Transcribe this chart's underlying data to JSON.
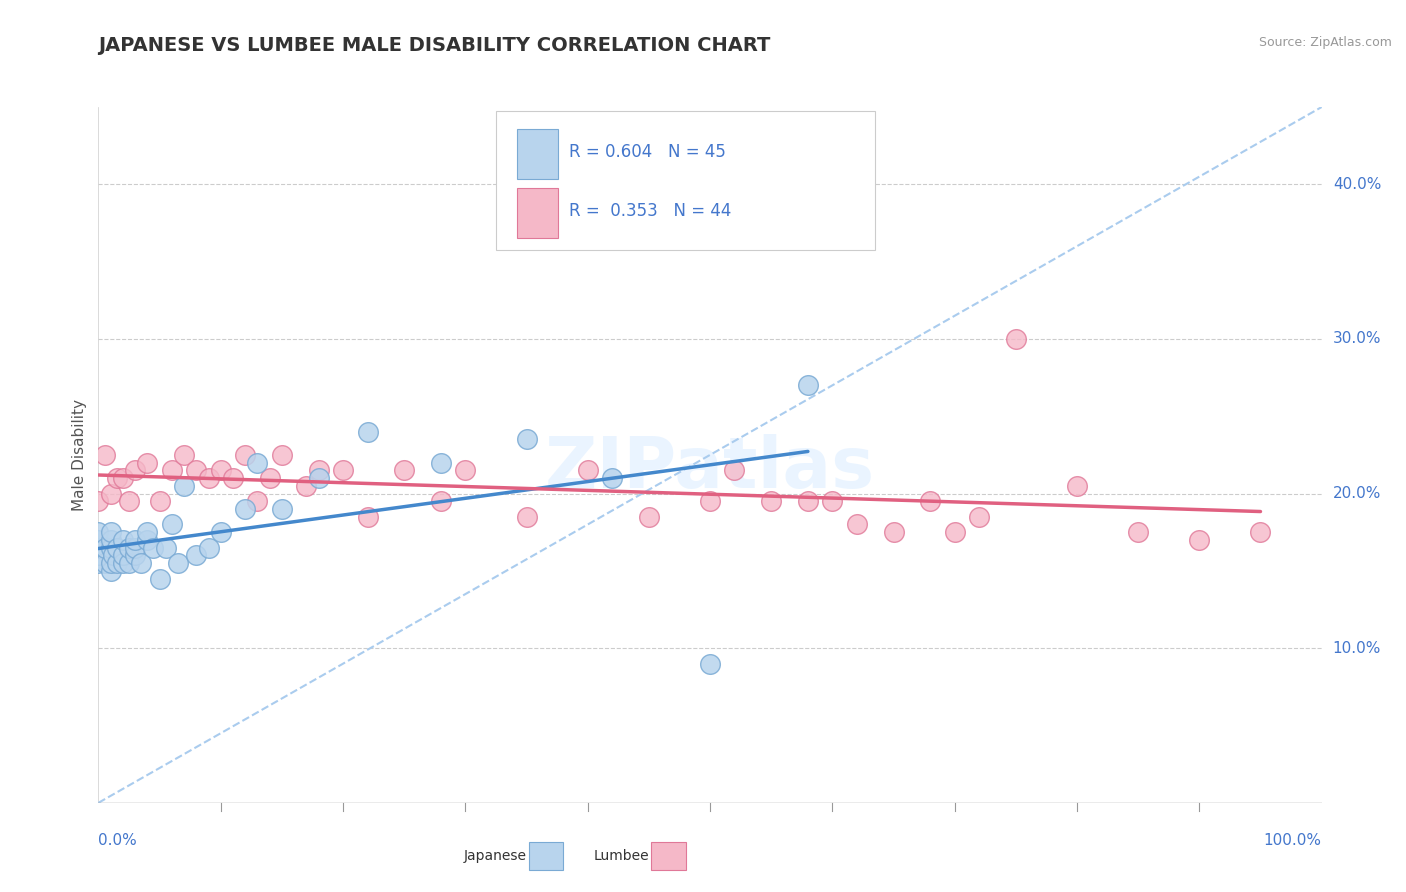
{
  "title": "JAPANESE VS LUMBEE MALE DISABILITY CORRELATION CHART",
  "source": "Source: ZipAtlas.com",
  "ylabel": "Male Disability",
  "ytick_vals": [
    0.1,
    0.2,
    0.3,
    0.4
  ],
  "ytick_labels": [
    "10.0%",
    "20.0%",
    "30.0%",
    "40.0%"
  ],
  "xlim": [
    0.0,
    1.0
  ],
  "ylim": [
    0.0,
    0.45
  ],
  "legend_R_japanese": "0.604",
  "legend_N_japanese": "45",
  "legend_R_lumbee": "0.353",
  "legend_N_lumbee": "44",
  "japanese_fill": "#b8d4ed",
  "japanese_edge": "#7aaad4",
  "lumbee_fill": "#f5b8c8",
  "lumbee_edge": "#e07898",
  "line_japanese_color": "#4488cc",
  "line_lumbee_color": "#e06080",
  "diag_color": "#aaccee",
  "watermark": "ZIPatlas",
  "japanese_x": [
    0.0,
    0.0,
    0.0,
    0.0,
    0.0,
    0.005,
    0.005,
    0.01,
    0.01,
    0.01,
    0.01,
    0.01,
    0.012,
    0.015,
    0.015,
    0.02,
    0.02,
    0.02,
    0.025,
    0.025,
    0.03,
    0.03,
    0.03,
    0.035,
    0.04,
    0.04,
    0.045,
    0.05,
    0.055,
    0.06,
    0.065,
    0.07,
    0.08,
    0.09,
    0.1,
    0.12,
    0.13,
    0.15,
    0.18,
    0.22,
    0.28,
    0.35,
    0.42,
    0.5,
    0.58
  ],
  "japanese_y": [
    0.155,
    0.16,
    0.165,
    0.17,
    0.175,
    0.155,
    0.165,
    0.15,
    0.155,
    0.165,
    0.17,
    0.175,
    0.16,
    0.155,
    0.165,
    0.155,
    0.16,
    0.17,
    0.155,
    0.165,
    0.16,
    0.165,
    0.17,
    0.155,
    0.17,
    0.175,
    0.165,
    0.145,
    0.165,
    0.18,
    0.155,
    0.205,
    0.16,
    0.165,
    0.175,
    0.19,
    0.22,
    0.19,
    0.21,
    0.24,
    0.22,
    0.235,
    0.21,
    0.09,
    0.27
  ],
  "lumbee_x": [
    0.0,
    0.005,
    0.01,
    0.015,
    0.02,
    0.025,
    0.03,
    0.04,
    0.05,
    0.06,
    0.07,
    0.08,
    0.09,
    0.1,
    0.11,
    0.12,
    0.13,
    0.14,
    0.15,
    0.17,
    0.18,
    0.2,
    0.22,
    0.25,
    0.28,
    0.3,
    0.35,
    0.4,
    0.45,
    0.5,
    0.52,
    0.55,
    0.58,
    0.6,
    0.62,
    0.65,
    0.68,
    0.7,
    0.72,
    0.75,
    0.8,
    0.85,
    0.9,
    0.95
  ],
  "lumbee_y": [
    0.195,
    0.225,
    0.2,
    0.21,
    0.21,
    0.195,
    0.215,
    0.22,
    0.195,
    0.215,
    0.225,
    0.215,
    0.21,
    0.215,
    0.21,
    0.225,
    0.195,
    0.21,
    0.225,
    0.205,
    0.215,
    0.215,
    0.185,
    0.215,
    0.195,
    0.215,
    0.185,
    0.215,
    0.185,
    0.195,
    0.215,
    0.195,
    0.195,
    0.195,
    0.18,
    0.175,
    0.195,
    0.175,
    0.185,
    0.3,
    0.205,
    0.175,
    0.17,
    0.175
  ]
}
